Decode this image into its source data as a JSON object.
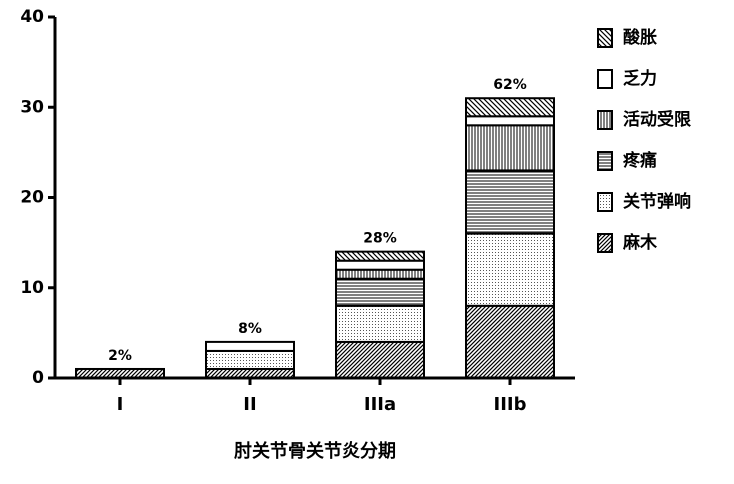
{
  "chart_data": {
    "type": "stacked_bar",
    "x_label": "肘关节骨关节炎分期",
    "categories": [
      "I",
      "II",
      "IIIa",
      "IIIb"
    ],
    "series": [
      {
        "name": "麻木",
        "color": "#000000",
        "pattern": "hatch-forward",
        "values": [
          1,
          1,
          4,
          8
        ]
      },
      {
        "name": "关节弹响",
        "color": "#000000",
        "pattern": "dots",
        "values": [
          0,
          2,
          4,
          8
        ]
      },
      {
        "name": "疼痛",
        "color": "#000000",
        "pattern": "horizontal",
        "values": [
          0,
          0,
          3,
          7
        ]
      },
      {
        "name": "活动受限",
        "color": "#000000",
        "pattern": "vertical",
        "values": [
          0,
          0,
          1,
          5
        ]
      },
      {
        "name": "乏力",
        "color": "#000000",
        "pattern": "empty",
        "values": [
          0,
          1,
          1,
          1
        ]
      },
      {
        "name": "酸胀",
        "color": "#000000",
        "pattern": "hatch-back",
        "values": [
          0,
          0,
          1,
          2
        ]
      }
    ],
    "annotations": [
      "2%",
      "8%",
      "28%",
      "62%"
    ],
    "ylim": [
      0,
      40
    ],
    "yticks": [
      0,
      10,
      20,
      30,
      40
    ],
    "legend": "right"
  }
}
